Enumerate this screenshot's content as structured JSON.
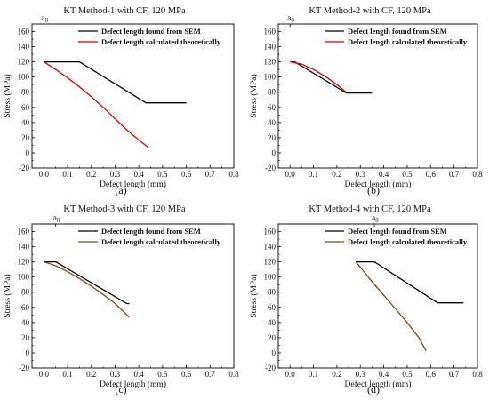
{
  "chart_data": [
    {
      "type": "line",
      "title": "KT Method-1 with CF, 120 MPa",
      "xlabel": "Defect length (mm)",
      "ylabel": "Stress (MPa)",
      "xlim": [
        -0.05,
        0.8
      ],
      "ylim": [
        -20,
        170
      ],
      "xticks": [
        "0.0",
        "0.1",
        "0.2",
        "0.3",
        "0.4",
        "0.5",
        "0.6",
        "0.7",
        "0.8"
      ],
      "yticks": [
        "-20",
        "0",
        "20",
        "40",
        "60",
        "80",
        "100",
        "120",
        "140",
        "160"
      ],
      "top_marker": {
        "label": "a",
        "sub": "0",
        "x": 0.0
      },
      "panel_label": "(a)",
      "legend": "top-right",
      "series": [
        {
          "name": "Defect length found from SEM",
          "color": "#000000",
          "x": [
            0.0,
            0.15,
            0.43,
            0.6
          ],
          "y": [
            120,
            120,
            66,
            66
          ]
        },
        {
          "name": "Defect length calculated theoretically",
          "color": "#e00000",
          "x": [
            0.0,
            0.05,
            0.1,
            0.15,
            0.2,
            0.25,
            0.3,
            0.35,
            0.4,
            0.44
          ],
          "y": [
            120,
            110,
            99,
            87,
            74,
            60,
            45,
            30,
            17,
            7
          ]
        }
      ]
    },
    {
      "type": "line",
      "title": "KT Method-2 with CF, 120 MPa",
      "xlabel": "Defect length (mm)",
      "ylabel": "Stress (MPa)",
      "xlim": [
        -0.05,
        0.8
      ],
      "ylim": [
        -20,
        170
      ],
      "xticks": [
        "0.0",
        "0.1",
        "0.2",
        "0.3",
        "0.4",
        "0.5",
        "0.6",
        "0.7",
        "0.8"
      ],
      "yticks": [
        "-20",
        "0",
        "20",
        "40",
        "60",
        "80",
        "100",
        "120",
        "140",
        "160"
      ],
      "top_marker": {
        "label": "a",
        "sub": "0",
        "x": 0.0
      },
      "panel_label": "(b)",
      "legend": "top-right",
      "series": [
        {
          "name": "Defect length found from SEM",
          "color": "#000000",
          "x": [
            0.0,
            0.02,
            0.24,
            0.35
          ],
          "y": [
            120,
            120,
            79,
            79
          ]
        },
        {
          "name": "Defect length calculated theoretically",
          "color": "#e00000",
          "x": [
            0.0,
            0.05,
            0.1,
            0.15,
            0.2,
            0.24
          ],
          "y": [
            120,
            117,
            110,
            101,
            90,
            80
          ]
        }
      ]
    },
    {
      "type": "line",
      "title": "KT Method-3 with CF, 120 MPa",
      "xlabel": "Defect length (mm)",
      "ylabel": "Stress (MPa)",
      "xlim": [
        -0.05,
        0.8
      ],
      "ylim": [
        -20,
        170
      ],
      "xticks": [
        "0.0",
        "0.1",
        "0.2",
        "0.3",
        "0.4",
        "0.5",
        "0.6",
        "0.7",
        "0.8"
      ],
      "yticks": [
        "-20",
        "0",
        "20",
        "40",
        "60",
        "80",
        "100",
        "120",
        "140",
        "160"
      ],
      "top_marker": {
        "label": "a",
        "sub": "0",
        "x": 0.05
      },
      "panel_label": "(c)",
      "legend": "top-right",
      "series": [
        {
          "name": "Defect length found from SEM",
          "color": "#000000",
          "x": [
            0.0,
            0.05,
            0.35,
            0.36
          ],
          "y": [
            120,
            120,
            65,
            65
          ]
        },
        {
          "name": "Defect length calculated theoretically",
          "color": "#7a4a10",
          "x": [
            0.0,
            0.05,
            0.1,
            0.15,
            0.2,
            0.25,
            0.3,
            0.36
          ],
          "y": [
            120,
            115,
            107,
            98,
            88,
            77,
            65,
            47
          ]
        }
      ]
    },
    {
      "type": "line",
      "title": "KT Method-4 with CF, 120 MPa",
      "xlabel": "Defect length (mm)",
      "ylabel": "Stress (MPa)",
      "xlim": [
        -0.05,
        0.8
      ],
      "ylim": [
        -20,
        170
      ],
      "xticks": [
        "0.0",
        "0.1",
        "0.2",
        "0.3",
        "0.4",
        "0.5",
        "0.6",
        "0.7",
        "0.8"
      ],
      "yticks": [
        "-20",
        "0",
        "20",
        "40",
        "60",
        "80",
        "100",
        "120",
        "140",
        "160"
      ],
      "top_marker": {
        "label": "a",
        "sub": "0",
        "x": 0.36
      },
      "panel_label": "(d)",
      "legend": "top-right",
      "series": [
        {
          "name": "Defect length found from SEM",
          "color": "#000000",
          "x": [
            0.28,
            0.36,
            0.63,
            0.74
          ],
          "y": [
            120,
            120,
            66,
            66
          ]
        },
        {
          "name": "Defect length calculated theoretically",
          "color": "#7a4a10",
          "x": [
            0.28,
            0.3,
            0.35,
            0.4,
            0.45,
            0.5,
            0.55,
            0.58
          ],
          "y": [
            120,
            113,
            94,
            76,
            58,
            40,
            20,
            3
          ]
        }
      ]
    }
  ]
}
